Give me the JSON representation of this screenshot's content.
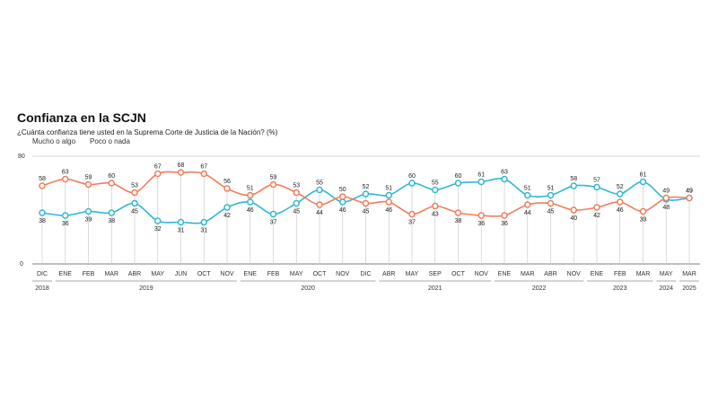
{
  "title": "Confianza en la SCJN",
  "subtitle": "¿Cuánta confianza tiene usted en la Suprema Corte de Justicia de la Nación? (%)",
  "colors": {
    "mucho": "#2fb8d6",
    "poco": "#ef7d5a",
    "grid": "#cccccc",
    "axis": "#555555"
  },
  "chart_data": {
    "type": "line",
    "title": "Confianza en la SCJN",
    "ylim": [
      0,
      80
    ],
    "yticks": [
      "0",
      "80"
    ],
    "categories": [
      "DIC",
      "ENE",
      "FEB",
      "MAR",
      "ABR",
      "MAY",
      "JUN",
      "OCT",
      "NOV",
      "ENE",
      "FEB",
      "MAY",
      "OCT",
      "NOV",
      "DIC",
      "ABR",
      "MAY",
      "SEP",
      "OCT",
      "NOV",
      "ENE",
      "MAR",
      "ABR",
      "NOV",
      "ENE",
      "FEB",
      "MAR",
      "MAY",
      "MAR"
    ],
    "years": [
      {
        "label": "2018",
        "start": 0,
        "end": 0
      },
      {
        "label": "2019",
        "start": 1,
        "end": 8
      },
      {
        "label": "2020",
        "start": 9,
        "end": 14
      },
      {
        "label": "2021",
        "start": 15,
        "end": 19
      },
      {
        "label": "2022",
        "start": 20,
        "end": 23
      },
      {
        "label": "2023",
        "start": 24,
        "end": 26
      },
      {
        "label": "2024",
        "start": 27,
        "end": 27
      },
      {
        "label": "2025",
        "start": 28,
        "end": 28
      }
    ],
    "series": [
      {
        "name": "Mucho o algo",
        "key": "mucho",
        "values": [
          38,
          36,
          39,
          38,
          45,
          32,
          31,
          31,
          42,
          46,
          37,
          45,
          55,
          46,
          52,
          51,
          60,
          55,
          60,
          61,
          63,
          51,
          51,
          58,
          57,
          52,
          61,
          48,
          49
        ]
      },
      {
        "name": "Poco o nada",
        "key": "poco",
        "values": [
          58,
          63,
          59,
          60,
          53,
          67,
          68,
          67,
          56,
          51,
          59,
          53,
          44,
          50,
          45,
          46,
          37,
          43,
          38,
          36,
          36,
          44,
          45,
          40,
          42,
          46,
          39,
          49,
          49
        ]
      }
    ]
  }
}
